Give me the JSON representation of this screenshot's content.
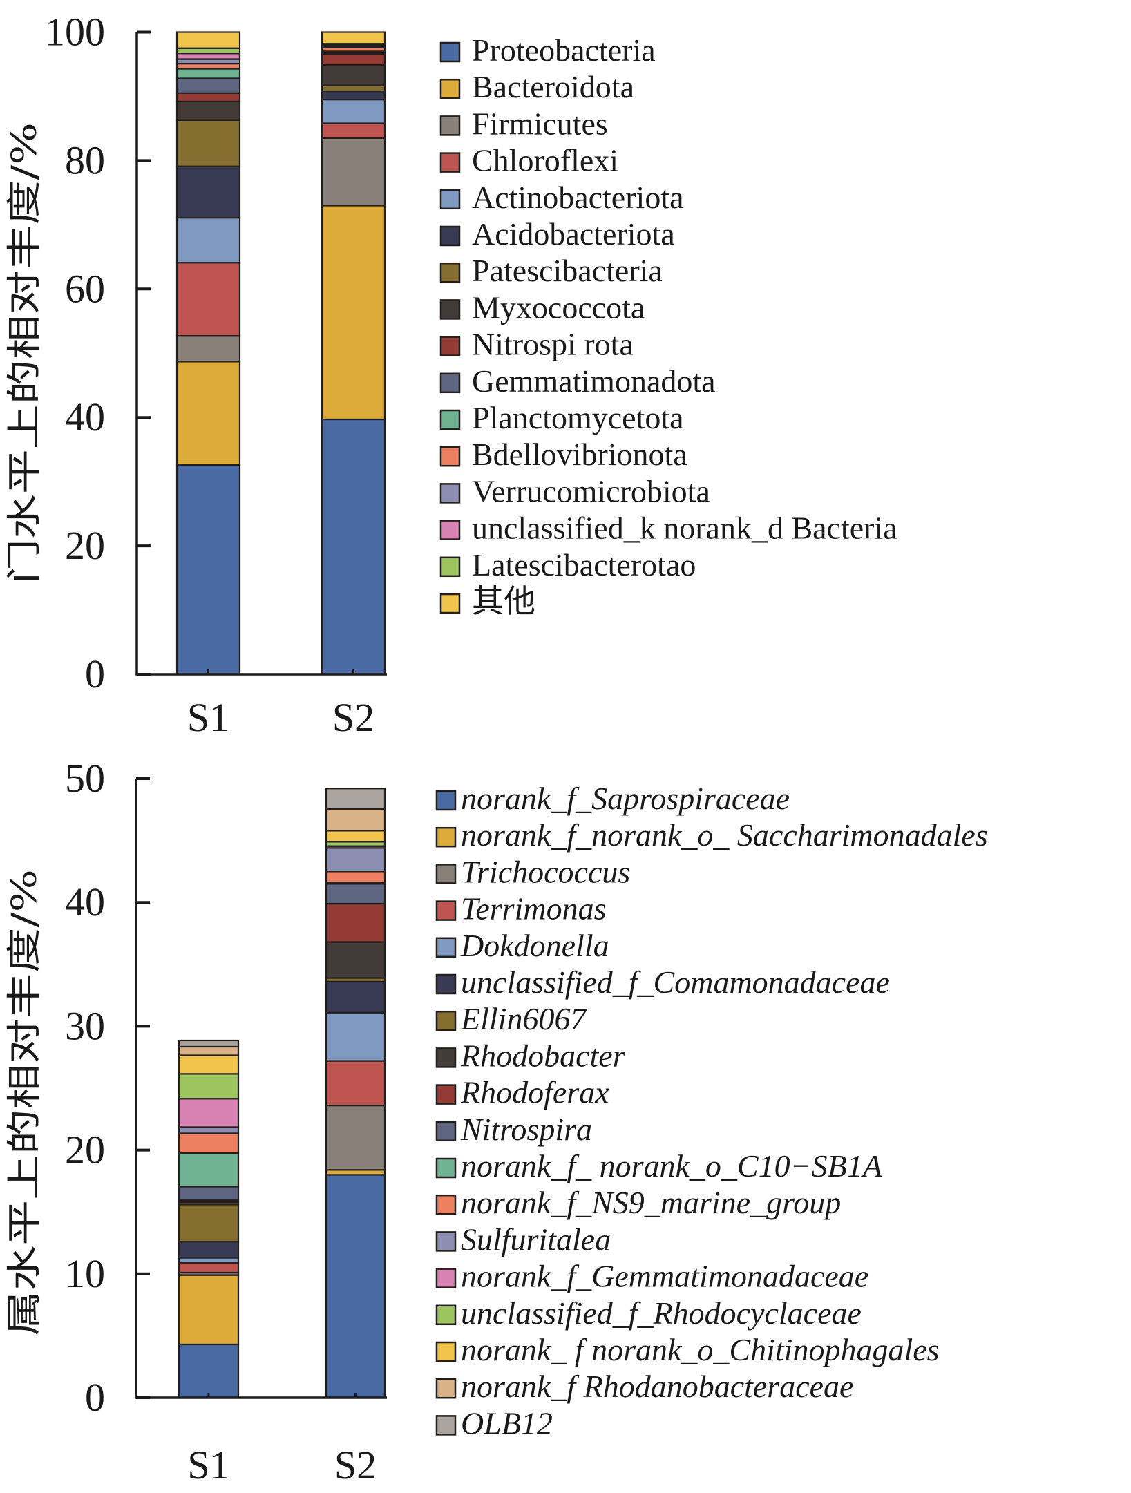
{
  "chart_data": [
    {
      "type": "bar",
      "stacked": true,
      "title": "",
      "xlabel": "",
      "ylabel": "门水平上的相对丰度/%",
      "ylim": [
        0,
        100
      ],
      "yticks": [
        0,
        20,
        40,
        60,
        80,
        100
      ],
      "categories": [
        "S1",
        "S2"
      ],
      "legend_position": "right",
      "legend_italic": false,
      "series": [
        {
          "name": "Proteobacteria",
          "color": "#4a6aa3",
          "values": [
            32.6,
            39.7
          ]
        },
        {
          "name": "Bacteroidota",
          "color": "#dcab3a",
          "values": [
            16.1,
            33.3
          ]
        },
        {
          "name": "Firmicutes",
          "color": "#8a807a",
          "values": [
            4.0,
            10.5
          ]
        },
        {
          "name": "Chloroflexi",
          "color": "#bf5550",
          "values": [
            11.4,
            2.3
          ]
        },
        {
          "name": "Actinobacteriota",
          "color": "#8099c0",
          "values": [
            7.0,
            3.7
          ]
        },
        {
          "name": "Acidobacteriota",
          "color": "#383a54",
          "values": [
            8.0,
            1.3
          ]
        },
        {
          "name": "Patescibacteria",
          "color": "#866d30",
          "values": [
            7.2,
            0.9
          ]
        },
        {
          "name": "Myxococcota",
          "color": "#433b37",
          "values": [
            2.9,
            3.2
          ]
        },
        {
          "name": "Nitrospi rota",
          "color": "#953b35",
          "values": [
            1.3,
            1.7
          ]
        },
        {
          "name": "Gemmatimonadota",
          "color": "#5e6580",
          "values": [
            2.3,
            0.3
          ]
        },
        {
          "name": "Planctomycetota",
          "color": "#6fb393",
          "values": [
            1.5,
            0.1
          ]
        },
        {
          "name": "Bdellovibrionota",
          "color": "#ee8062",
          "values": [
            0.8,
            0.6
          ]
        },
        {
          "name": "Verrucomicrobiota",
          "color": "#8c8fb1",
          "values": [
            0.7,
            0.2
          ]
        },
        {
          "name": "unclassified_k norank_d Bacteria",
          "color": "#d882b4",
          "values": [
            0.9,
            0.2
          ]
        },
        {
          "name": "Latescibacterotao",
          "color": "#9dc55f",
          "values": [
            0.8,
            0.2
          ]
        },
        {
          "name": "其他",
          "color": "#f1c44b",
          "values": [
            2.5,
            1.8
          ]
        }
      ]
    },
    {
      "type": "bar",
      "stacked": true,
      "title": "",
      "xlabel": "",
      "ylabel": "属水平上的相对丰度/%",
      "ylim": [
        0,
        50
      ],
      "yticks": [
        0,
        10,
        20,
        30,
        40,
        50
      ],
      "categories": [
        "S1",
        "S2"
      ],
      "legend_position": "right",
      "legend_italic": true,
      "series": [
        {
          "name": "norank_f_Saprospiraceae",
          "color": "#4a6aa3",
          "values": [
            4.3,
            18.0
          ]
        },
        {
          "name": "norank_f_norank_o_ Saccharimonadales",
          "color": "#dcab3a",
          "values": [
            5.6,
            0.4
          ]
        },
        {
          "name": "Trichococcus",
          "color": "#8a807a",
          "values": [
            0.2,
            5.2
          ]
        },
        {
          "name": "Terrimonas",
          "color": "#bf5550",
          "values": [
            0.8,
            3.6
          ]
        },
        {
          "name": "Dokdonella",
          "color": "#8099c0",
          "values": [
            0.4,
            3.9
          ]
        },
        {
          "name": "unclassified_f_Comamonadaceae",
          "color": "#383a54",
          "values": [
            1.3,
            2.5
          ]
        },
        {
          "name": "Ellin6067",
          "color": "#866d30",
          "values": [
            3.0,
            0.3
          ]
        },
        {
          "name": "Rhodobacter",
          "color": "#433b37",
          "values": [
            0.2,
            2.9
          ]
        },
        {
          "name": "Rhodoferax",
          "color": "#953b35",
          "values": [
            0.15,
            3.1
          ]
        },
        {
          "name": "Nitrospira",
          "color": "#5e6580",
          "values": [
            1.1,
            1.6
          ]
        },
        {
          "name": "norank_f_ norank_o_C10−SB1A",
          "color": "#6fb393",
          "values": [
            2.7,
            0.1
          ]
        },
        {
          "name": "norank_f_NS9_marine_group",
          "color": "#ee8062",
          "values": [
            1.6,
            0.9
          ]
        },
        {
          "name": "Sulfuritalea",
          "color": "#8c8fb1",
          "values": [
            0.5,
            1.9
          ]
        },
        {
          "name": "norank_f_Gemmatimonadaceae",
          "color": "#d882b4",
          "values": [
            2.3,
            0.15
          ]
        },
        {
          "name": "unclassified_f_Rhodocyclaceae",
          "color": "#9dc55f",
          "values": [
            2.0,
            0.35
          ]
        },
        {
          "name": "norank_ f norank_o_Chitinophagales",
          "color": "#f1c44b",
          "values": [
            1.5,
            0.9
          ]
        },
        {
          "name": "norank_f Rhodanobacteraceae",
          "color": "#d9b287",
          "values": [
            0.7,
            1.75
          ]
        },
        {
          "name": "OLB12",
          "color": "#aba49f",
          "values": [
            0.5,
            1.65
          ]
        }
      ]
    }
  ]
}
